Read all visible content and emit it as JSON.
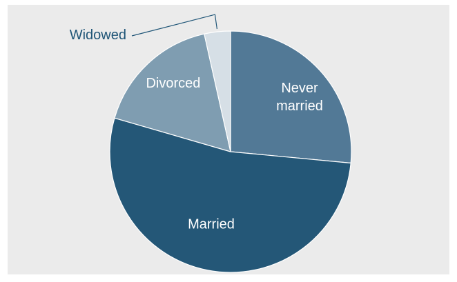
{
  "chart_data": {
    "type": "pie",
    "title": "",
    "slices": [
      {
        "label": "Never married",
        "label_lines": [
          "Never",
          "married"
        ],
        "value": 26.5,
        "color": "#527996",
        "label_placement": "inside"
      },
      {
        "label": "Married",
        "label_lines": [
          "Married"
        ],
        "value": 53.0,
        "color": "#245777",
        "label_placement": "inside"
      },
      {
        "label": "Divorced",
        "label_lines": [
          "Divorced"
        ],
        "value": 17.0,
        "color": "#7f9db1",
        "label_placement": "inside"
      },
      {
        "label": "Widowed",
        "label_lines": [
          "Widowed"
        ],
        "value": 3.5,
        "color": "#d6dfe6",
        "label_placement": "outside"
      }
    ],
    "start_angle_deg": 0,
    "direction": "clockwise",
    "legend": "none",
    "colors": {
      "background": "#ebebeb",
      "outside_label": "#1f5577",
      "inside_label": "#ffffff"
    }
  }
}
